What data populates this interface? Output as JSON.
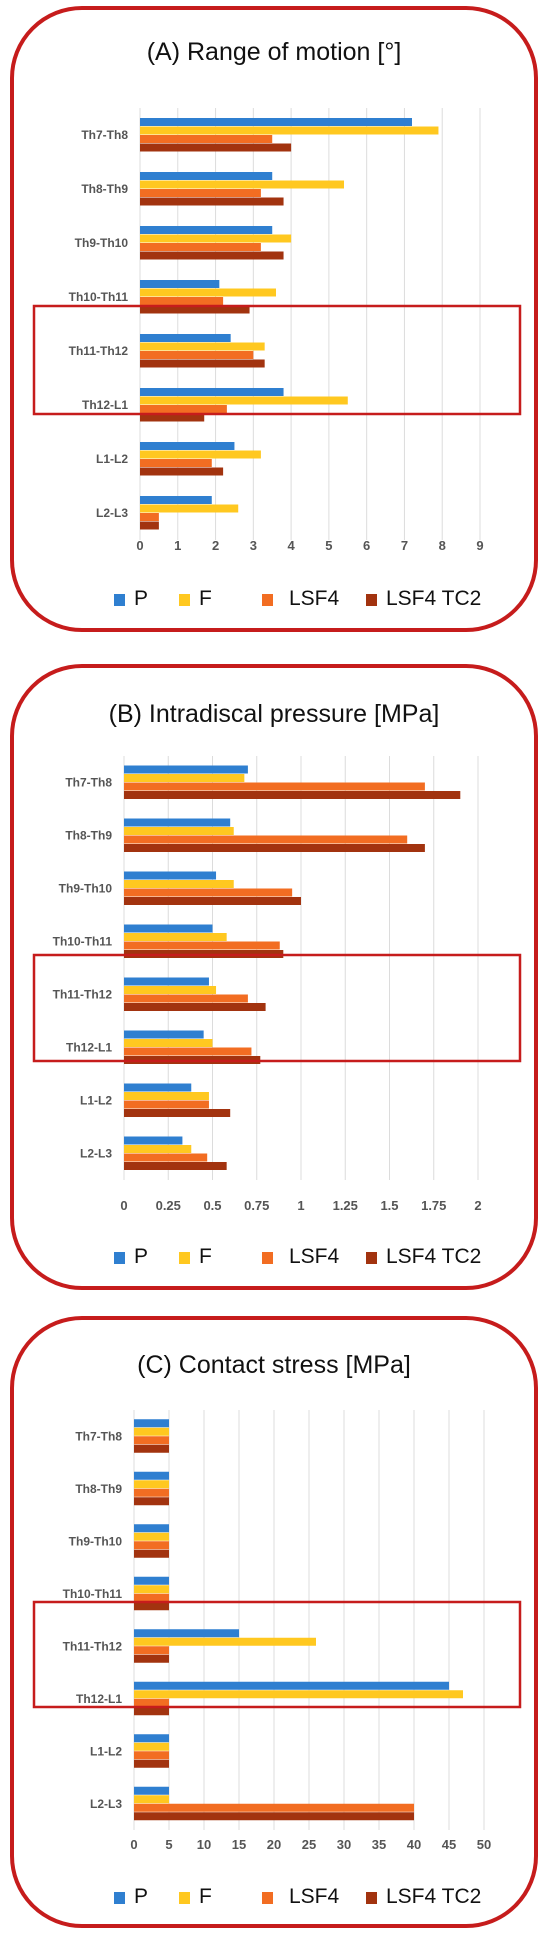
{
  "colors": {
    "P": "#2f7fd0",
    "F": "#ffc820",
    "LSF4": "#f26d22",
    "LSF4 TC2": "#a2330f",
    "frame": "#c61c1c"
  },
  "legend": [
    "P",
    "F",
    "LSF4",
    "LSF4 TC2"
  ],
  "chart_data": [
    {
      "type": "bar",
      "orientation": "horizontal",
      "title": "(A)  Range of motion [°]",
      "categories": [
        "Th7-Th8",
        "Th8-Th9",
        "Th9-Th10",
        "Th10-Th11",
        "Th11-Th12",
        "Th12-L1",
        "L1-L2",
        "L2-L3"
      ],
      "series": [
        {
          "name": "P",
          "values": [
            7.2,
            3.5,
            3.5,
            2.1,
            2.4,
            3.8,
            2.5,
            1.9
          ]
        },
        {
          "name": "F",
          "values": [
            7.9,
            5.4,
            4.0,
            3.6,
            3.3,
            5.5,
            3.2,
            2.6
          ]
        },
        {
          "name": "LSF4",
          "values": [
            3.5,
            3.2,
            3.2,
            2.2,
            3.0,
            2.3,
            1.9,
            0.5
          ]
        },
        {
          "name": "LSF4 TC2",
          "values": [
            4.0,
            3.8,
            3.8,
            2.9,
            3.3,
            1.7,
            2.2,
            0.5
          ]
        }
      ],
      "xlim": [
        0,
        9
      ],
      "ticks": [
        "0",
        "1",
        "2",
        "3",
        "4",
        "5",
        "6",
        "7",
        "8",
        "9"
      ],
      "grid": true,
      "legend_position": "bottom",
      "highlight": [
        "Th11-Th12",
        "Th12-L1"
      ]
    },
    {
      "type": "bar",
      "orientation": "horizontal",
      "title": "(B)  Intradiscal pressure [MPa]",
      "categories": [
        "Th7-Th8",
        "Th8-Th9",
        "Th9-Th10",
        "Th10-Th11",
        "Th11-Th12",
        "Th12-L1",
        "L1-L2",
        "L2-L3"
      ],
      "series": [
        {
          "name": "P",
          "values": [
            0.7,
            0.6,
            0.52,
            0.5,
            0.48,
            0.45,
            0.38,
            0.33
          ]
        },
        {
          "name": "F",
          "values": [
            0.68,
            0.62,
            0.62,
            0.58,
            0.52,
            0.5,
            0.48,
            0.38
          ]
        },
        {
          "name": "LSF4",
          "values": [
            1.7,
            1.6,
            0.95,
            0.88,
            0.7,
            0.72,
            0.48,
            0.47
          ]
        },
        {
          "name": "LSF4 TC2",
          "values": [
            1.9,
            1.7,
            1.0,
            0.9,
            0.8,
            0.77,
            0.6,
            0.58
          ]
        }
      ],
      "xlim": [
        0,
        2
      ],
      "ticks": [
        "0",
        "0.25",
        "0.5",
        "0.75",
        "1",
        "1.25",
        "1.5",
        "1.75",
        "2"
      ],
      "grid": true,
      "legend_position": "bottom",
      "highlight": [
        "Th11-Th12",
        "Th12-L1"
      ]
    },
    {
      "type": "bar",
      "orientation": "horizontal",
      "title": "(C)  Contact stress [MPa]",
      "categories": [
        "Th7-Th8",
        "Th8-Th9",
        "Th9-Th10",
        "Th10-Th11",
        "Th11-Th12",
        "Th12-L1",
        "L1-L2",
        "L2-L3"
      ],
      "series": [
        {
          "name": "P",
          "values": [
            5,
            5,
            5,
            5,
            15,
            45,
            5,
            5
          ]
        },
        {
          "name": "F",
          "values": [
            5,
            5,
            5,
            5,
            26,
            47,
            5,
            5
          ]
        },
        {
          "name": "LSF4",
          "values": [
            5,
            5,
            5,
            5,
            5,
            5,
            5,
            40
          ]
        },
        {
          "name": "LSF4 TC2",
          "values": [
            5,
            5,
            5,
            5,
            5,
            5,
            5,
            40
          ]
        }
      ],
      "xlim": [
        0,
        50
      ],
      "ticks": [
        "0",
        "5",
        "10",
        "15",
        "20",
        "25",
        "30",
        "35",
        "40",
        "45",
        "50"
      ],
      "grid": true,
      "legend_position": "bottom",
      "highlight": [
        "Th11-Th12",
        "Th12-L1"
      ]
    }
  ]
}
